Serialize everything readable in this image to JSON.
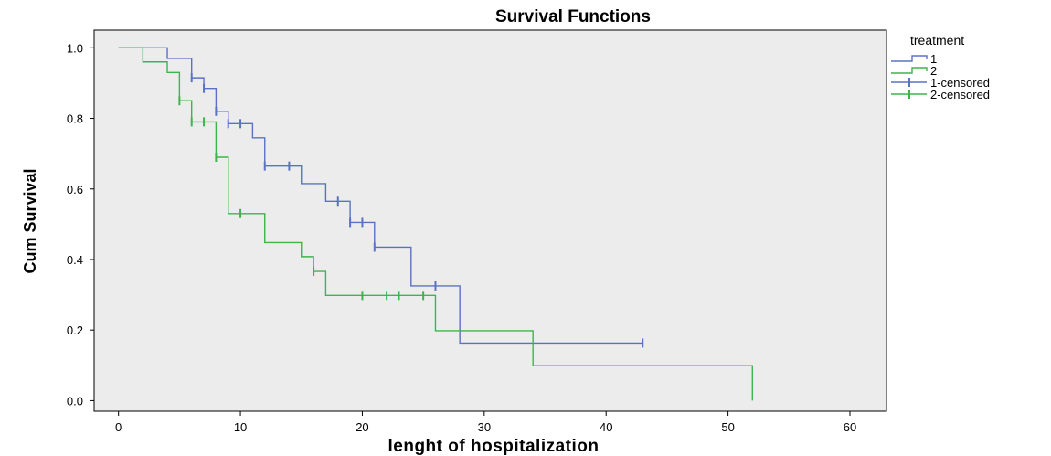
{
  "chart_data": {
    "type": "line",
    "title": "Survival Functions",
    "xlabel": "lenght of hospitalization",
    "ylabel": "Cum Survival",
    "xlim": [
      -2,
      63
    ],
    "ylim": [
      -0.03,
      1.05
    ],
    "xticks": [
      0,
      10,
      20,
      30,
      40,
      50,
      60
    ],
    "yticks": [
      0.0,
      0.2,
      0.4,
      0.6,
      0.8,
      1.0
    ],
    "xtick_labels": [
      "0",
      "10",
      "20",
      "30",
      "40",
      "50",
      "60"
    ],
    "ytick_labels": [
      "0.0",
      "0.2",
      "0.4",
      "0.6",
      "0.8",
      "1.0"
    ],
    "grid": false,
    "background": "#ececec",
    "legend": {
      "title": "treatment",
      "position": "right",
      "entries": [
        "1",
        "2",
        "1-censored",
        "2-censored"
      ]
    },
    "series": [
      {
        "name": "1",
        "color": "#5b72c4",
        "steps": [
          [
            0,
            1.0
          ],
          [
            4,
            0.97
          ],
          [
            6,
            0.915
          ],
          [
            7,
            0.885
          ],
          [
            8,
            0.82
          ],
          [
            9,
            0.785
          ],
          [
            11,
            0.745
          ],
          [
            12,
            0.665
          ],
          [
            15,
            0.615
          ],
          [
            17,
            0.565
          ],
          [
            19,
            0.505
          ],
          [
            21,
            0.435
          ],
          [
            24,
            0.325
          ],
          [
            28,
            0.163
          ]
        ],
        "end_x": 43,
        "censored": [
          [
            6,
            0.915
          ],
          [
            7,
            0.885
          ],
          [
            8,
            0.82
          ],
          [
            9,
            0.785
          ],
          [
            10,
            0.785
          ],
          [
            12,
            0.665
          ],
          [
            14,
            0.665
          ],
          [
            18,
            0.565
          ],
          [
            19,
            0.505
          ],
          [
            20,
            0.505
          ],
          [
            21,
            0.435
          ],
          [
            26,
            0.325
          ],
          [
            43,
            0.163
          ]
        ]
      },
      {
        "name": "2",
        "color": "#3cb54a",
        "steps": [
          [
            0,
            1.0
          ],
          [
            2,
            0.96
          ],
          [
            4,
            0.93
          ],
          [
            5,
            0.85
          ],
          [
            6,
            0.79
          ],
          [
            8,
            0.69
          ],
          [
            9,
            0.53
          ],
          [
            12,
            0.448
          ],
          [
            15,
            0.408
          ],
          [
            16,
            0.366
          ],
          [
            17,
            0.298
          ],
          [
            26,
            0.198
          ],
          [
            34,
            0.099
          ],
          [
            52,
            0.0
          ]
        ],
        "end_x": 52,
        "censored": [
          [
            5,
            0.85
          ],
          [
            6,
            0.79
          ],
          [
            7,
            0.79
          ],
          [
            8,
            0.69
          ],
          [
            10,
            0.53
          ],
          [
            16,
            0.366
          ],
          [
            20,
            0.298
          ],
          [
            22,
            0.298
          ],
          [
            23,
            0.298
          ],
          [
            25,
            0.298
          ]
        ]
      }
    ]
  }
}
